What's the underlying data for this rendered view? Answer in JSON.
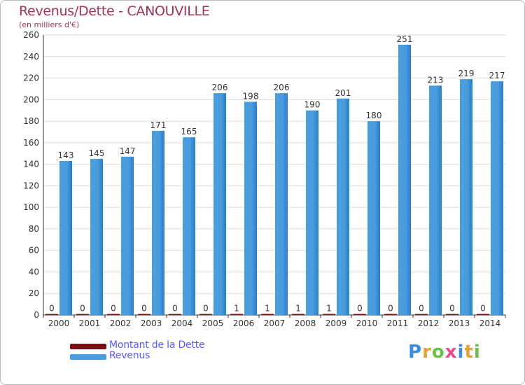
{
  "title": "Revenus/Dette - CANOUVILLE",
  "subtitle": "(en milliers d'€)",
  "legend": {
    "debt_label": "Montant de la Dette",
    "revenue_label": "Revenus"
  },
  "logo": {
    "letters": [
      "P",
      "r",
      "o",
      "x",
      "i",
      "t",
      "i"
    ],
    "colors": [
      "#3a8de0",
      "#e8a23a",
      "#6cc04a",
      "#e84a8a",
      "#3a8de0",
      "#e8a23a",
      "#6cc04a"
    ]
  },
  "colors": {
    "revenue": "#4a9ee0",
    "revenue_dark": "#2a7ec8",
    "debt": "#7a0f14",
    "grid": "#dcdcdc",
    "axis": "#333333",
    "title": "#a3325a",
    "legend_text": "#5a5aff"
  },
  "chart_data": {
    "type": "bar",
    "title": "Revenus/Dette - CANOUVILLE",
    "subtitle": "(en milliers d'€)",
    "categories": [
      "2000",
      "2001",
      "2002",
      "2003",
      "2004",
      "2005",
      "2006",
      "2007",
      "2008",
      "2009",
      "2010",
      "2011",
      "2012",
      "2013",
      "2014"
    ],
    "series": [
      {
        "name": "Montant de la Dette",
        "values": [
          0,
          0,
          0,
          0,
          0,
          0,
          1,
          1,
          1,
          1,
          0,
          0,
          0,
          0,
          0
        ]
      },
      {
        "name": "Revenus",
        "values": [
          143,
          145,
          147,
          171,
          165,
          206,
          198,
          206,
          190,
          201,
          180,
          251,
          213,
          219,
          217
        ]
      }
    ],
    "ylim": [
      0,
      260
    ],
    "yticks": [
      0,
      20,
      40,
      60,
      80,
      100,
      120,
      140,
      160,
      180,
      200,
      220,
      240,
      260
    ],
    "grid": true,
    "legend_position": "bottom-left"
  }
}
